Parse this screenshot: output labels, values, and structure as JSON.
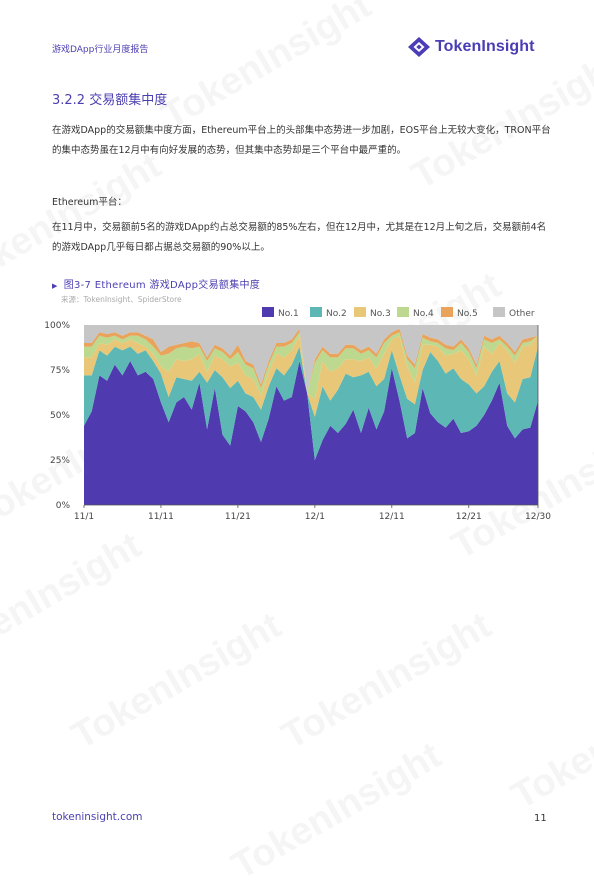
{
  "header": {
    "title": "游戏DApp行业月度报告",
    "logo_text": "TokenInsight",
    "logo_icon": "tokeninsight-logo-icon"
  },
  "section": {
    "heading": "3.2.2 交易额集中度",
    "paragraph_1": "在游戏DApp的交易额集中度方面，Ethereum平台上的头部集中态势进一步加剧，EOS平台上无较大变化，TRON平台的集中态势虽在12月中有向好发展的态势，但其集中态势却是三个平台中最严重的。",
    "subheading": "Ethereum平台：",
    "paragraph_2": "在11月中，交易额前5名的游戏DApp约占总交易额的85%左右，但在12月中，尤其是在12月上旬之后，交易额前4名的游戏DApp几乎每日都占据总交易额的90%以上。"
  },
  "figure": {
    "caption": "图3-7 Ethereum 游戏DApp交易额集中度",
    "source": "来源：TokenInsight、SpiderStore"
  },
  "watermark_text": "TokenInsight",
  "footer": {
    "url": "tokeninsight.com",
    "page_number": "11"
  },
  "chart_data": {
    "type": "area",
    "stacked": true,
    "normalized": true,
    "x_tick_labels": [
      "11/1",
      "11/11",
      "11/21",
      "12/1",
      "12/11",
      "12/21",
      "12/30"
    ],
    "x_tick_index": [
      0,
      10,
      20,
      30,
      40,
      50,
      59
    ],
    "y_tick_labels": [
      "0%",
      "25%",
      "50%",
      "75%",
      "100%"
    ],
    "ylim": [
      0,
      100
    ],
    "grid": false,
    "legend_position": "top-right",
    "colors": {
      "No.1": "#4f3aaf",
      "No.2": "#5db8b5",
      "No.3": "#e8c878",
      "No.4": "#bcd98f",
      "No.5": "#e9a35a",
      "Other": "#c6c6c6"
    },
    "series": [
      {
        "name": "No.1",
        "values": [
          44,
          52,
          72,
          69,
          78,
          72,
          80,
          72,
          74,
          70,
          57,
          46,
          57,
          60,
          53,
          68,
          42,
          65,
          39,
          33,
          55,
          52,
          46,
          35,
          48,
          66,
          58,
          60,
          80,
          62,
          25,
          36,
          44,
          40,
          45,
          53,
          40,
          54,
          42,
          52,
          76,
          58,
          37,
          40,
          65,
          51,
          46,
          43,
          48,
          40,
          41,
          44,
          50,
          58,
          68,
          44,
          37,
          42,
          43,
          58
        ]
      },
      {
        "name": "No.2",
        "values": [
          28,
          20,
          14,
          14,
          10,
          14,
          8,
          12,
          12,
          10,
          16,
          14,
          14,
          10,
          16,
          6,
          26,
          10,
          32,
          32,
          14,
          10,
          14,
          18,
          18,
          10,
          14,
          18,
          8,
          0,
          24,
          30,
          14,
          24,
          28,
          18,
          32,
          20,
          24,
          18,
          10,
          14,
          22,
          16,
          10,
          34,
          34,
          30,
          28,
          30,
          26,
          18,
          16,
          16,
          12,
          18,
          20,
          28,
          28,
          30
        ]
      },
      {
        "name": "No.3",
        "values": [
          10,
          10,
          4,
          6,
          4,
          4,
          4,
          6,
          2,
          4,
          4,
          14,
          10,
          10,
          12,
          10,
          6,
          8,
          10,
          12,
          10,
          10,
          10,
          8,
          8,
          8,
          10,
          8,
          6,
          0,
          10,
          14,
          16,
          12,
          8,
          10,
          8,
          8,
          10,
          14,
          6,
          22,
          18,
          12,
          14,
          4,
          8,
          10,
          8,
          16,
          14,
          10,
          22,
          10,
          10,
          24,
          22,
          18,
          18,
          6
        ]
      },
      {
        "name": "No.4",
        "values": [
          6,
          6,
          4,
          4,
          2,
          2,
          2,
          4,
          4,
          4,
          6,
          10,
          6,
          8,
          6,
          4,
          6,
          4,
          4,
          4,
          6,
          6,
          6,
          4,
          4,
          4,
          6,
          4,
          2,
          0,
          20,
          6,
          8,
          6,
          6,
          6,
          4,
          4,
          6,
          6,
          2,
          2,
          4,
          8,
          4,
          2,
          2,
          4,
          2,
          4,
          4,
          4,
          4,
          6,
          2,
          2,
          4,
          2,
          2,
          0
        ]
      },
      {
        "name": "No.5",
        "values": [
          2,
          2,
          2,
          2,
          2,
          2,
          2,
          2,
          2,
          4,
          2,
          4,
          2,
          2,
          4,
          2,
          2,
          2,
          2,
          2,
          4,
          2,
          2,
          2,
          2,
          2,
          2,
          2,
          2,
          0,
          2,
          2,
          2,
          2,
          2,
          2,
          2,
          2,
          2,
          2,
          2,
          2,
          2,
          2,
          2,
          2,
          2,
          2,
          2,
          2,
          2,
          2,
          2,
          2,
          2,
          2,
          2,
          2,
          2,
          0
        ]
      },
      {
        "name": "Other",
        "values": [
          10,
          10,
          4,
          5,
          4,
          6,
          4,
          4,
          6,
          8,
          15,
          12,
          11,
          10,
          9,
          10,
          18,
          11,
          13,
          17,
          11,
          20,
          22,
          33,
          20,
          10,
          10,
          8,
          2,
          38,
          19,
          12,
          16,
          16,
          11,
          11,
          14,
          12,
          16,
          8,
          4,
          2,
          17,
          22,
          5,
          7,
          8,
          11,
          12,
          8,
          13,
          22,
          6,
          8,
          6,
          10,
          15,
          8,
          7,
          6
        ]
      }
    ]
  }
}
